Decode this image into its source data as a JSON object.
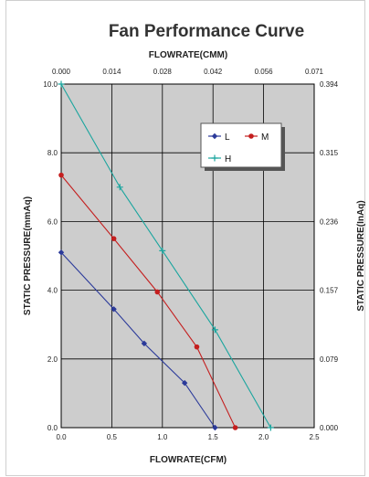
{
  "chart_data": {
    "type": "line",
    "title": "Fan Performance Curve",
    "xlabel": "FLOWRATE(CFM)",
    "x2label": "FLOWRATE(CMM)",
    "ylabel": "STATIC PRESSURE(mmAq)",
    "y2label": "STATIC PRESSURE(InAq)",
    "xlim": [
      0,
      2.5
    ],
    "ylim": [
      0,
      10
    ],
    "x_ticks": [
      "0.0",
      "0.5",
      "1.0",
      "1.5",
      "2.0",
      "2.5"
    ],
    "y_ticks": [
      "0.0",
      "2.0",
      "4.0",
      "6.0",
      "8.0",
      "10.0"
    ],
    "x2_ticks": [
      "0.000",
      "0.014",
      "0.028",
      "0.042",
      "0.056",
      "0.071"
    ],
    "y2_ticks": [
      "0.000",
      "0.079",
      "0.157",
      "0.236",
      "0.315",
      "0.394"
    ],
    "grid": true,
    "legend_position": "top-right",
    "series": [
      {
        "name": "L",
        "color": "#2b3a9a",
        "marker": "diamond",
        "x": [
          0.0,
          0.52,
          0.82,
          1.22,
          1.52
        ],
        "y": [
          5.1,
          3.45,
          2.45,
          1.3,
          0.0
        ]
      },
      {
        "name": "M",
        "color": "#c41e1e",
        "marker": "circle",
        "x": [
          0.0,
          0.52,
          0.95,
          1.34,
          1.72
        ],
        "y": [
          7.35,
          5.5,
          3.95,
          2.35,
          0.0
        ]
      },
      {
        "name": "H",
        "color": "#1aa59e",
        "marker": "plus",
        "x": [
          0.0,
          0.58,
          1.0,
          1.52,
          2.07
        ],
        "y": [
          10.0,
          7.0,
          5.15,
          2.85,
          0.0
        ]
      }
    ]
  }
}
